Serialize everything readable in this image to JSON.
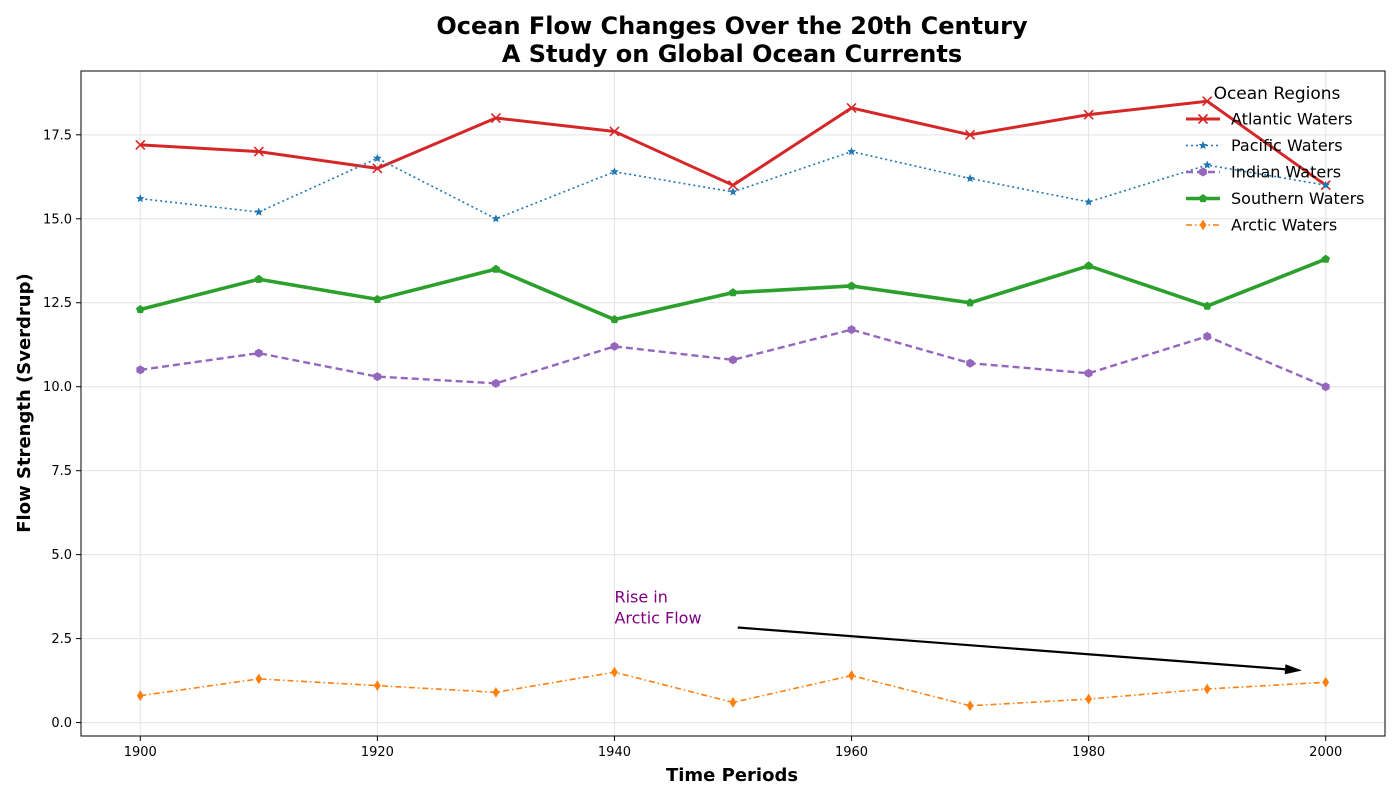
{
  "chart_data": {
    "type": "line",
    "title": [
      "Ocean Flow Changes Over the 20th Century",
      "A Study on Global Ocean Currents"
    ],
    "xlabel": "Time Periods",
    "ylabel": "Flow Strength (Sverdrup)",
    "x": [
      1900,
      1910,
      1920,
      1930,
      1940,
      1950,
      1960,
      1970,
      1980,
      1990,
      2000
    ],
    "xlim": [
      1895,
      2005
    ],
    "ylim": [
      -0.4,
      19.4
    ],
    "xticks": [
      1900,
      1920,
      1940,
      1960,
      1980,
      2000
    ],
    "yticks": [
      0.0,
      2.5,
      5.0,
      7.5,
      10.0,
      12.5,
      15.0,
      17.5
    ],
    "grid": true,
    "legend": {
      "title": "Ocean Regions",
      "placement": "top-right"
    },
    "series": [
      {
        "name": "Atlantic Waters",
        "color": "#d62728",
        "linestyle": "solid",
        "marker": "x",
        "linewidth": "thick",
        "values": [
          17.2,
          17.0,
          16.5,
          18.0,
          17.6,
          16.0,
          18.3,
          17.5,
          18.1,
          18.5,
          16.0
        ]
      },
      {
        "name": "Pacific Waters",
        "color": "#1f77b4",
        "linestyle": "dotted",
        "marker": "star",
        "linewidth": "thin",
        "values": [
          15.6,
          15.2,
          16.8,
          15.0,
          16.4,
          15.8,
          17.0,
          16.2,
          15.5,
          16.6,
          16.0
        ]
      },
      {
        "name": "Indian Waters",
        "color": "#9467bd",
        "linestyle": "dashed",
        "marker": "hexagon",
        "linewidth": "medium",
        "values": [
          10.5,
          11.0,
          10.3,
          10.1,
          11.2,
          10.8,
          11.7,
          10.7,
          10.4,
          11.5,
          10.0
        ]
      },
      {
        "name": "Southern Waters",
        "color": "#2ca02c",
        "linestyle": "solid",
        "marker": "pentagon",
        "linewidth": "extra-thick",
        "values": [
          12.3,
          13.2,
          12.6,
          13.5,
          12.0,
          12.8,
          13.0,
          12.5,
          13.6,
          12.4,
          13.8
        ]
      },
      {
        "name": "Arctic Waters",
        "color": "#ff7f0e",
        "linestyle": "dashdot",
        "marker": "diamond",
        "linewidth": "thin",
        "values": [
          0.8,
          1.3,
          1.1,
          0.9,
          1.5,
          0.6,
          1.4,
          0.5,
          0.7,
          1.0,
          1.2
        ]
      }
    ],
    "annotation": {
      "text": [
        "Rise in",
        "Arctic Flow"
      ],
      "color": "#800080",
      "text_at": [
        1940,
        3.1
      ],
      "arrow_from": [
        1950.4,
        2.83
      ],
      "arrow_to": [
        1998,
        1.55
      ]
    }
  }
}
